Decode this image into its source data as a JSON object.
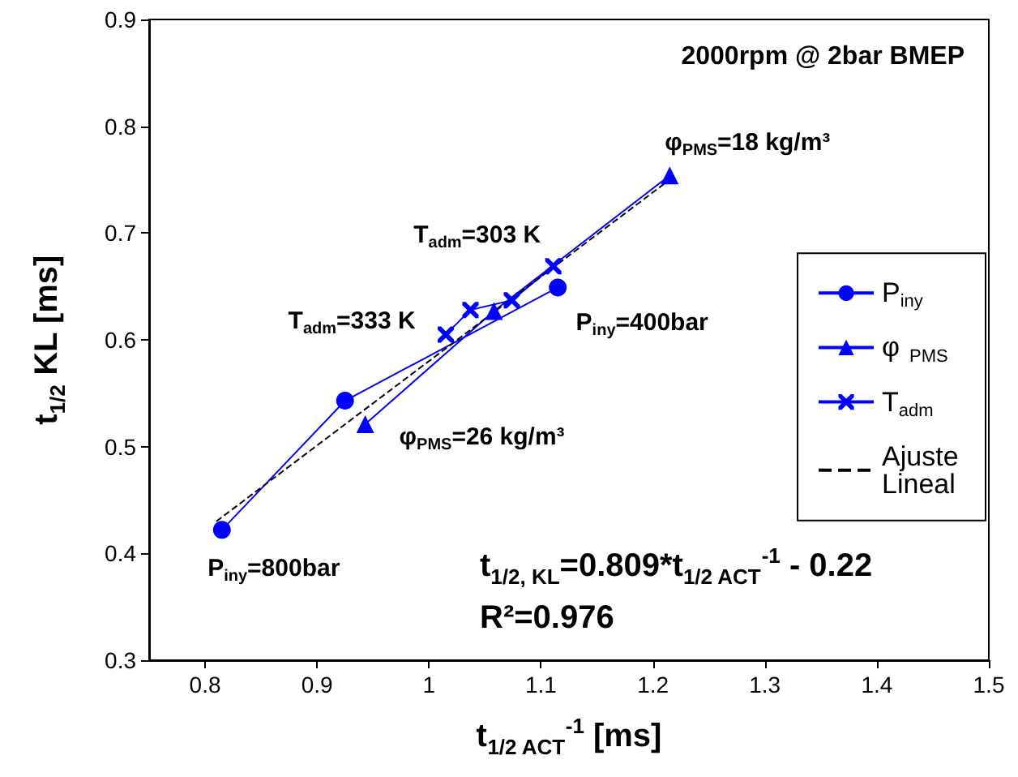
{
  "chart_data": {
    "type": "line",
    "title": "2000rpm @ 2bar BMEP",
    "xlabel": "t$_{1/2 ACT}$$^{-1}$ [ms]",
    "ylabel": "t$_{1/2}$ KL [ms]",
    "xlim": [
      0.75,
      1.5
    ],
    "xticks": [
      0.8,
      0.9,
      1,
      1.1,
      1.2,
      1.3,
      1.4,
      1.5
    ],
    "ylim": [
      0.3,
      0.9
    ],
    "yticks": [
      0.3,
      0.4,
      0.5,
      0.6,
      0.7,
      0.8,
      0.9
    ],
    "grid": false,
    "legend": "right",
    "line_style": "solid",
    "series": [
      {
        "name": "P$_{iny}$",
        "color": "#0000ff",
        "marker": "circle",
        "x": [
          0.815,
          0.925,
          1.115
        ],
        "values": [
          0.422,
          0.543,
          0.649
        ]
      },
      {
        "name": "φ$_{PMS}$",
        "color": "#0000ff",
        "marker": "triangle",
        "x": [
          0.943,
          1.058,
          1.215
        ],
        "values": [
          0.521,
          0.627,
          0.754
        ]
      },
      {
        "name": "T$_{adm}$",
        "color": "#0000ff",
        "marker": "cross",
        "x": [
          1.015,
          1.037,
          1.074,
          1.111
        ],
        "values": [
          0.605,
          0.628,
          0.637,
          0.669
        ]
      },
      {
        "name": "Ajuste Lineal",
        "color": "#000000",
        "marker": "none",
        "line_style": "dashed",
        "x": [
          0.81,
          1.215
        ],
        "values": [
          0.43,
          0.75
        ]
      }
    ],
    "annotations": [
      {
        "text": "P$_{iny}$=800bar",
        "x": 0.815,
        "y": 0.422
      },
      {
        "text": "P$_{iny}$=400bar",
        "x": 1.115,
        "y": 0.649
      },
      {
        "text": "φ$_{PMS}$=26 kg/m³",
        "x": 0.943,
        "y": 0.521
      },
      {
        "text": "φ$_{PMS}$=18 kg/m³",
        "x": 1.215,
        "y": 0.754
      },
      {
        "text": "T$_{adm}$=333 K",
        "x": 1.015,
        "y": 0.605
      },
      {
        "text": "T$_{adm}$=303 K",
        "x": 1.111,
        "y": 0.669
      },
      "t$_{1/2, KL}$=0.809*t$_{1/2 ACT}$$^{-1}$ - 0.22",
      "R²=0.976"
    ]
  }
}
